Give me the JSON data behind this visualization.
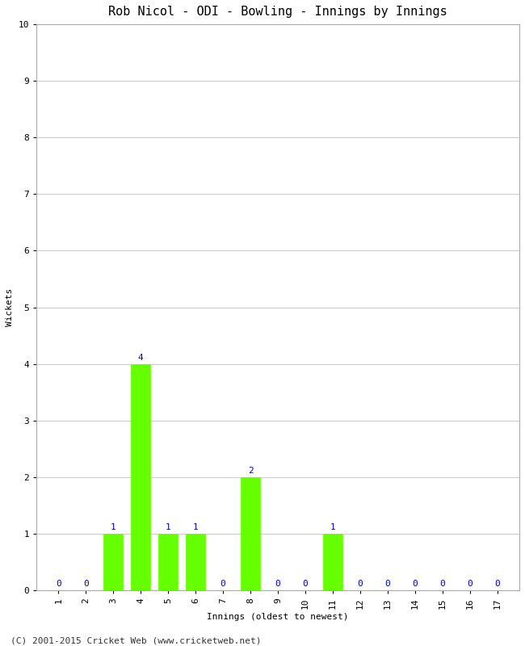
{
  "title": "Rob Nicol - ODI - Bowling - Innings by Innings",
  "xlabel": "Innings (oldest to newest)",
  "ylabel": "Wickets",
  "innings": [
    1,
    2,
    3,
    4,
    5,
    6,
    7,
    8,
    9,
    10,
    11,
    12,
    13,
    14,
    15,
    16,
    17
  ],
  "wickets": [
    0,
    0,
    1,
    4,
    1,
    1,
    0,
    2,
    0,
    0,
    1,
    0,
    0,
    0,
    0,
    0,
    0
  ],
  "ylim": [
    0,
    10
  ],
  "yticks": [
    0,
    1,
    2,
    3,
    4,
    5,
    6,
    7,
    8,
    9,
    10
  ],
  "bar_color": "#66ff00",
  "bar_edge_color": "#66ff00",
  "label_color": "#0000cc",
  "label_fontsize": 8,
  "title_fontsize": 11,
  "axis_label_fontsize": 8,
  "tick_fontsize": 8,
  "background_color": "#ffffff",
  "grid_color": "#cccccc",
  "footer": "(C) 2001-2015 Cricket Web (www.cricketweb.net)"
}
